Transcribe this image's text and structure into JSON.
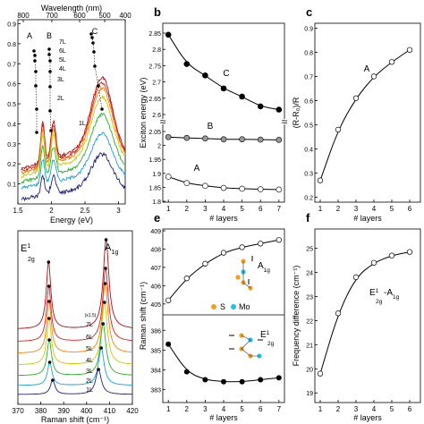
{
  "chart_data": [
    {
      "id": "a",
      "type": "line",
      "panel_label": "",
      "xlabel": "Energy (eV)",
      "ylabel": "",
      "top_axis_label": "Wavelength (nm)",
      "xlim": [
        1.5,
        3.1
      ],
      "ylim": [
        0.0,
        0.92
      ],
      "x_ticks": [
        "1.5",
        "2",
        "2.5",
        "3"
      ],
      "y_ticks": [
        "0.1",
        "0.2",
        "0.3",
        "0.4",
        "0.5",
        "0.6",
        "0.7",
        "0.8",
        "0.9"
      ],
      "top_ticks": [
        "800",
        "700",
        "600",
        "500",
        "400"
      ],
      "peak_labels": [
        "A",
        "B",
        "C"
      ],
      "series_labels": [
        "7L",
        "6L",
        "5L",
        "4L",
        "3L",
        "2L",
        "1L"
      ],
      "colors": [
        "#b01010",
        "#e02020",
        "#ff7f00",
        "#c8c800",
        "#2ab02a",
        "#1aa0e0",
        "#202080"
      ]
    },
    {
      "id": "b",
      "type": "line",
      "panel_label": "b",
      "xlabel": "# layers",
      "ylabel": "Exciton energy (eV)",
      "x": [
        1,
        2,
        3,
        4,
        5,
        6,
        7
      ],
      "x_ticks": [
        "1",
        "2",
        "3",
        "4",
        "5",
        "6",
        "7"
      ],
      "y_ticks_top": [
        "2.85",
        "2.8",
        "2.75",
        "2.7",
        "2.65",
        "2.6"
      ],
      "y_ticks_bottom": [
        "2.05",
        "2",
        "1.95",
        "1.9",
        "1.85",
        "1.8"
      ],
      "series": [
        {
          "name": "C",
          "values": [
            2.845,
            2.755,
            2.72,
            2.68,
            2.655,
            2.625,
            2.615
          ]
        },
        {
          "name": "B",
          "values": [
            2.03,
            2.027,
            2.025,
            2.022,
            2.022,
            2.021,
            2.02
          ]
        },
        {
          "name": "A",
          "values": [
            1.888,
            1.865,
            1.855,
            1.848,
            1.845,
            1.843,
            1.842
          ]
        }
      ]
    },
    {
      "id": "c",
      "type": "line",
      "panel_label": "c",
      "xlabel": "# layers",
      "ylabel": "(R-R₀)/R",
      "x": [
        1,
        2,
        3,
        4,
        5,
        6
      ],
      "x_ticks": [
        "1",
        "2",
        "3",
        "4",
        "5",
        "6"
      ],
      "y_ticks": [
        "0.2",
        "0.3",
        "0.4",
        "0.5",
        "0.6",
        "0.7",
        "0.8",
        "0.9"
      ],
      "ylim": [
        0.18,
        0.92
      ],
      "series": [
        {
          "name": "A",
          "values": [
            0.27,
            0.48,
            0.61,
            0.7,
            0.76,
            0.81
          ]
        }
      ]
    },
    {
      "id": "d",
      "type": "line",
      "panel_label": "",
      "xlabel": "Raman shift (cm⁻¹)",
      "ylabel": "",
      "xlim": [
        370,
        420
      ],
      "x_ticks": [
        "370",
        "380",
        "390",
        "400",
        "410",
        "420"
      ],
      "peak_labels": {
        "e": "E",
        "e_sup": "1",
        "e_sub": "2g",
        "a": "A",
        "a_sub": "1g"
      },
      "scale_note": "(x1.5)",
      "series_labels": [
        "7L",
        "6L",
        "5L",
        "4L",
        "3L",
        "2L",
        "1L"
      ]
    },
    {
      "id": "e",
      "type": "line",
      "panel_label": "e",
      "xlabel": "# layers",
      "ylabel": "Raman shift (cm⁻¹)",
      "x": [
        1,
        2,
        3,
        4,
        5,
        6,
        7
      ],
      "x_ticks": [
        "1",
        "2",
        "3",
        "4",
        "5",
        "6",
        "7"
      ],
      "y_ticks_top": [
        "409",
        "408",
        "407",
        "406",
        "405"
      ],
      "y_ticks_bottom": [
        "386",
        "385",
        "384",
        "383"
      ],
      "legend": [
        "S",
        "Mo"
      ],
      "series": [
        {
          "name_main": "A",
          "name_sub": "1g",
          "values": [
            405.2,
            406.4,
            407.2,
            407.8,
            408.1,
            408.3,
            408.5
          ]
        },
        {
          "name_main": "E",
          "name_sup": "1",
          "name_sub": "2g",
          "values": [
            385.3,
            383.9,
            383.5,
            383.4,
            383.4,
            383.5,
            383.6
          ]
        }
      ]
    },
    {
      "id": "f",
      "type": "line",
      "panel_label": "f",
      "xlabel": "# layers",
      "ylabel": "Frequency difference (cm⁻¹)",
      "x": [
        1,
        2,
        3,
        4,
        5,
        6
      ],
      "x_ticks": [
        "1",
        "2",
        "3",
        "4",
        "5",
        "6"
      ],
      "y_ticks": [
        "19",
        "20",
        "21",
        "22",
        "23",
        "24",
        "25"
      ],
      "ylim": [
        18.6,
        25.8
      ],
      "annotation": {
        "main1": "E",
        "sup1": "1",
        "sub1": "2g",
        "dash": "-",
        "main2": "A",
        "sub2": "1g"
      },
      "series": [
        {
          "values": [
            19.8,
            22.3,
            23.8,
            24.4,
            24.7,
            24.85
          ]
        }
      ]
    }
  ]
}
